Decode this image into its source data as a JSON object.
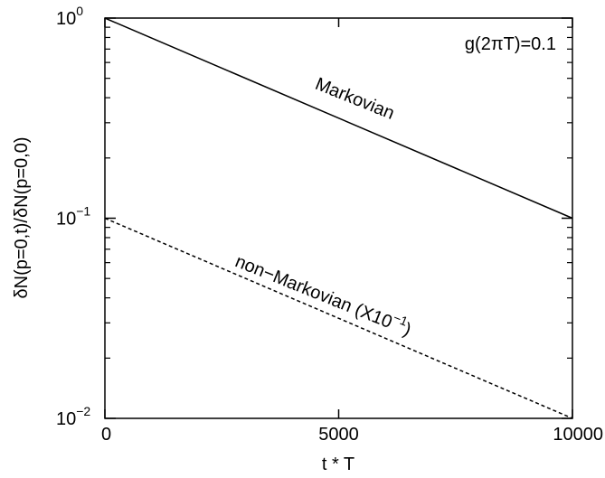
{
  "chart_data": {
    "type": "line",
    "title": "",
    "xlabel": "t * T",
    "ylabel": "δN(p=0,t)/δN(p=0,0)",
    "xlim": [
      0,
      10000
    ],
    "ylim": [
      0.01,
      1
    ],
    "yscale": "log",
    "grid": false,
    "legend": "none",
    "x_ticks": [
      {
        "value": 0,
        "label": "0"
      },
      {
        "value": 5000,
        "label": "5000"
      },
      {
        "value": 10000,
        "label": "10000"
      }
    ],
    "y_ticks": [
      {
        "value": 0.01,
        "base": "10",
        "exp": "−2"
      },
      {
        "value": 0.1,
        "base": "10",
        "exp": "−1"
      },
      {
        "value": 1,
        "base": "10",
        "exp": "0"
      }
    ],
    "annotations": [
      {
        "text": "g(2πT)=0.1",
        "position": "top-right"
      }
    ],
    "series": [
      {
        "name": "Markovian",
        "style": "solid",
        "color": "#000000",
        "x": [
          0,
          10000
        ],
        "y": [
          1.0,
          0.1
        ]
      },
      {
        "name": "non−Markovian (X10",
        "name_exp": "−1",
        "name_close": ")",
        "style": "dashed",
        "color": "#000000",
        "x": [
          0,
          10000
        ],
        "y": [
          0.1,
          0.01
        ]
      }
    ]
  }
}
